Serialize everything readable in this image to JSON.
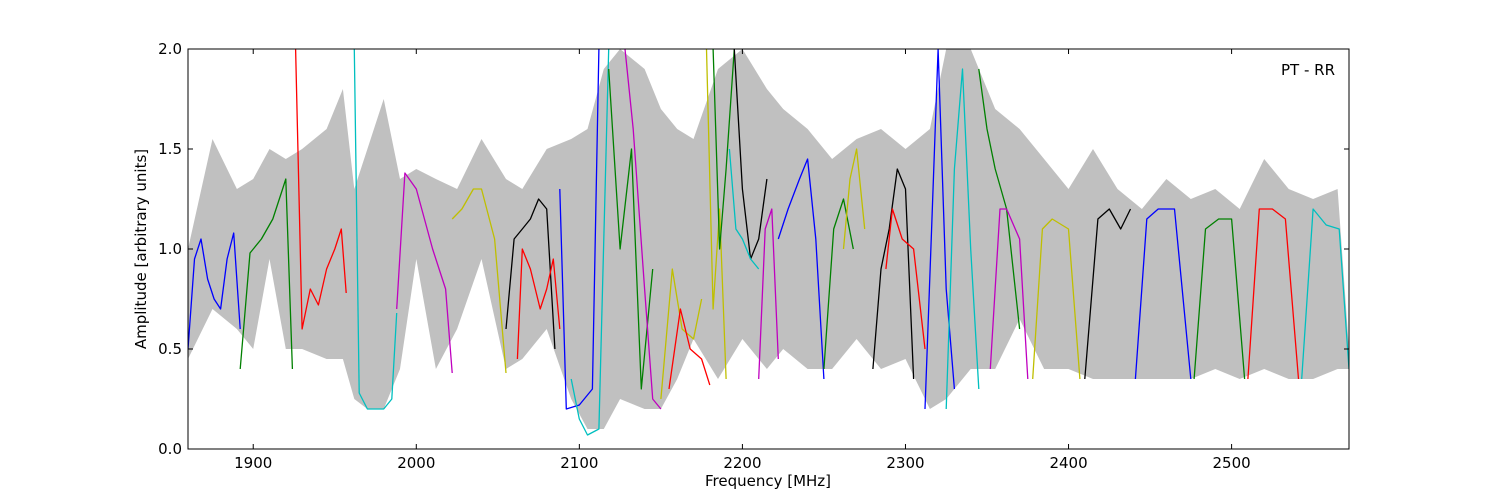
{
  "chart_data": {
    "type": "line",
    "title": "",
    "annotation": "PT - RR",
    "xlabel": "Frequency [MHz]",
    "ylabel": "Amplitude [arbitrary units]",
    "xlim": [
      1860,
      2572
    ],
    "ylim": [
      0.0,
      2.0
    ],
    "xticks": [
      1900,
      2000,
      2100,
      2200,
      2300,
      2400,
      2500
    ],
    "yticks": [
      0.0,
      0.5,
      1.0,
      1.5,
      2.0
    ],
    "xtick_labels": [
      "1900",
      "2000",
      "2100",
      "2200",
      "2300",
      "2400",
      "2500"
    ],
    "ytick_labels": [
      "0.0",
      "0.5",
      "1.0",
      "1.5",
      "2.0"
    ],
    "grid": false,
    "legend": "none",
    "background_envelope": {
      "color": "#c0c0c0",
      "x": [
        1860,
        1875,
        1890,
        1900,
        1910,
        1920,
        1930,
        1945,
        1955,
        1962,
        1970,
        1980,
        1990,
        2000,
        2012,
        2025,
        2040,
        2055,
        2065,
        2080,
        2095,
        2105,
        2115,
        2125,
        2140,
        2150,
        2160,
        2170,
        2185,
        2200,
        2215,
        2225,
        2240,
        2255,
        2270,
        2285,
        2300,
        2315,
        2325,
        2340,
        2355,
        2370,
        2385,
        2400,
        2415,
        2430,
        2445,
        2460,
        2475,
        2490,
        2505,
        2520,
        2535,
        2550,
        2565,
        2572
      ],
      "upper": [
        1.0,
        1.55,
        1.3,
        1.35,
        1.5,
        1.45,
        1.5,
        1.6,
        1.8,
        1.3,
        1.5,
        1.75,
        1.35,
        1.4,
        1.35,
        1.3,
        1.55,
        1.35,
        1.3,
        1.5,
        1.55,
        1.6,
        1.9,
        2.0,
        1.9,
        1.7,
        1.6,
        1.55,
        1.9,
        2.0,
        1.8,
        1.7,
        1.6,
        1.45,
        1.55,
        1.6,
        1.5,
        1.6,
        2.0,
        2.0,
        1.7,
        1.6,
        1.45,
        1.3,
        1.5,
        1.3,
        1.2,
        1.35,
        1.25,
        1.3,
        1.2,
        1.45,
        1.3,
        1.25,
        1.3,
        0.5
      ],
      "lower": [
        0.45,
        0.7,
        0.6,
        0.5,
        0.95,
        0.5,
        0.5,
        0.45,
        0.45,
        0.25,
        0.2,
        0.2,
        0.4,
        0.95,
        0.4,
        0.6,
        0.95,
        0.4,
        0.45,
        0.6,
        0.25,
        0.1,
        0.1,
        0.25,
        0.2,
        0.2,
        0.35,
        0.55,
        0.35,
        0.55,
        0.4,
        0.5,
        0.4,
        0.4,
        0.55,
        0.4,
        0.45,
        0.2,
        0.25,
        0.4,
        0.4,
        0.65,
        0.4,
        0.4,
        0.35,
        0.35,
        0.35,
        0.35,
        0.35,
        0.4,
        0.35,
        0.4,
        0.35,
        0.35,
        0.4,
        0.4
      ]
    },
    "series": [
      {
        "color": "#0000ff",
        "x": [
          1860,
          1864,
          1868,
          1872,
          1876,
          1880,
          1884,
          1888,
          1892
        ],
        "y": [
          0.5,
          0.95,
          1.05,
          0.85,
          0.75,
          0.7,
          0.95,
          1.08,
          0.6
        ]
      },
      {
        "color": "#008000",
        "x": [
          1892,
          1898,
          1905,
          1912,
          1918,
          1920,
          1924
        ],
        "y": [
          0.4,
          0.98,
          1.05,
          1.15,
          1.3,
          1.35,
          0.4
        ]
      },
      {
        "color": "#ff0000",
        "x": [
          1926,
          1930,
          1935,
          1940,
          1945,
          1950,
          1954,
          1957
        ],
        "y": [
          2.0,
          0.6,
          0.8,
          0.72,
          0.9,
          1.0,
          1.1,
          0.78
        ]
      },
      {
        "color": "#00bfbf",
        "x": [
          1962,
          1965,
          1970,
          1980,
          1985,
          1988
        ],
        "y": [
          2.0,
          0.28,
          0.2,
          0.2,
          0.25,
          0.68
        ]
      },
      {
        "color": "#bf00bf",
        "x": [
          1988,
          1993,
          2000,
          2010,
          2018,
          2022
        ],
        "y": [
          0.7,
          1.38,
          1.3,
          1.0,
          0.8,
          0.38
        ]
      },
      {
        "color": "#bfbf00",
        "x": [
          2022,
          2028,
          2035,
          2040,
          2048,
          2055
        ],
        "y": [
          1.15,
          1.2,
          1.3,
          1.3,
          1.05,
          0.38
        ]
      },
      {
        "color": "#000000",
        "x": [
          2055,
          2060,
          2065,
          2070,
          2075,
          2080,
          2085
        ],
        "y": [
          0.6,
          1.05,
          1.1,
          1.15,
          1.25,
          1.2,
          0.5
        ]
      },
      {
        "color": "#ff0000",
        "x": [
          2062,
          2065,
          2070,
          2076,
          2080,
          2084,
          2088
        ],
        "y": [
          0.45,
          1.0,
          0.9,
          0.7,
          0.8,
          0.95,
          0.6
        ]
      },
      {
        "color": "#0000ff",
        "x": [
          2088,
          2092,
          2100,
          2108,
          2112
        ],
        "y": [
          1.3,
          0.2,
          0.22,
          0.3,
          2.0
        ]
      },
      {
        "color": "#00bfbf",
        "x": [
          2095,
          2100,
          2105,
          2112,
          2118
        ],
        "y": [
          0.35,
          0.15,
          0.07,
          0.1,
          2.0
        ]
      },
      {
        "color": "#008000",
        "x": [
          2118,
          2125,
          2132,
          2138,
          2145
        ],
        "y": [
          1.9,
          1.0,
          1.5,
          0.3,
          0.9
        ]
      },
      {
        "color": "#bf00bf",
        "x": [
          2128,
          2133,
          2140,
          2145,
          2150
        ],
        "y": [
          2.0,
          1.6,
          0.8,
          0.25,
          0.2
        ]
      },
      {
        "color": "#bfbf00",
        "x": [
          2150,
          2157,
          2163,
          2170,
          2175
        ],
        "y": [
          0.25,
          0.9,
          0.6,
          0.55,
          0.75
        ]
      },
      {
        "color": "#ff0000",
        "x": [
          2155,
          2162,
          2168,
          2175,
          2180
        ],
        "y": [
          0.3,
          0.7,
          0.5,
          0.45,
          0.32
        ]
      },
      {
        "color": "#bfbf00",
        "x": [
          2178,
          2182,
          2186,
          2190
        ],
        "y": [
          2.0,
          0.7,
          1.2,
          0.35
        ]
      },
      {
        "color": "#008000",
        "x": [
          2182,
          2186,
          2190,
          2195
        ],
        "y": [
          2.0,
          1.0,
          1.4,
          2.0
        ]
      },
      {
        "color": "#000000",
        "x": [
          2195,
          2200,
          2205,
          2210,
          2215
        ],
        "y": [
          2.0,
          1.3,
          0.95,
          1.05,
          1.35
        ]
      },
      {
        "color": "#00bfbf",
        "x": [
          2192,
          2196,
          2200,
          2205,
          2210
        ],
        "y": [
          1.5,
          1.1,
          1.05,
          0.95,
          0.9
        ]
      },
      {
        "color": "#bf00bf",
        "x": [
          2210,
          2214,
          2218,
          2222
        ],
        "y": [
          0.35,
          1.1,
          1.2,
          0.45
        ]
      },
      {
        "color": "#0000ff",
        "x": [
          2222,
          2228,
          2235,
          2240,
          2245,
          2250
        ],
        "y": [
          1.05,
          1.2,
          1.35,
          1.45,
          1.05,
          0.35
        ]
      },
      {
        "color": "#008000",
        "x": [
          2250,
          2256,
          2262,
          2268
        ],
        "y": [
          0.4,
          1.1,
          1.25,
          1.0
        ]
      },
      {
        "color": "#bfbf00",
        "x": [
          2262,
          2266,
          2270,
          2275
        ],
        "y": [
          1.0,
          1.35,
          1.5,
          1.1
        ]
      },
      {
        "color": "#000000",
        "x": [
          2280,
          2285,
          2290,
          2295,
          2300,
          2305
        ],
        "y": [
          0.4,
          0.9,
          1.1,
          1.4,
          1.3,
          0.35
        ]
      },
      {
        "color": "#ff0000",
        "x": [
          2288,
          2292,
          2298,
          2305,
          2312
        ],
        "y": [
          0.9,
          1.2,
          1.05,
          1.0,
          0.5
        ]
      },
      {
        "color": "#0000ff",
        "x": [
          2312,
          2316,
          2320,
          2325,
          2330
        ],
        "y": [
          0.2,
          1.1,
          2.0,
          0.8,
          0.3
        ]
      },
      {
        "color": "#00bfbf",
        "x": [
          2325,
          2330,
          2335,
          2340,
          2345
        ],
        "y": [
          0.2,
          1.4,
          1.9,
          1.0,
          0.3
        ]
      },
      {
        "color": "#008000",
        "x": [
          2345,
          2350,
          2355,
          2362,
          2370
        ],
        "y": [
          1.9,
          1.6,
          1.4,
          1.2,
          0.6
        ]
      },
      {
        "color": "#bf00bf",
        "x": [
          2352,
          2358,
          2362,
          2370,
          2375
        ],
        "y": [
          0.4,
          1.2,
          1.2,
          1.05,
          0.35
        ]
      },
      {
        "color": "#bfbf00",
        "x": [
          2378,
          2384,
          2390,
          2400,
          2407
        ],
        "y": [
          0.35,
          1.1,
          1.15,
          1.1,
          0.35
        ]
      },
      {
        "color": "#000000",
        "x": [
          2410,
          2418,
          2425,
          2432,
          2438
        ],
        "y": [
          0.35,
          1.15,
          1.2,
          1.1,
          1.2
        ]
      },
      {
        "color": "#0000ff",
        "x": [
          2441,
          2448,
          2455,
          2465,
          2475
        ],
        "y": [
          0.35,
          1.15,
          1.2,
          1.2,
          0.35
        ]
      },
      {
        "color": "#008000",
        "x": [
          2477,
          2484,
          2492,
          2500,
          2508
        ],
        "y": [
          0.35,
          1.1,
          1.15,
          1.15,
          0.35
        ]
      },
      {
        "color": "#ff0000",
        "x": [
          2510,
          2517,
          2525,
          2533,
          2541
        ],
        "y": [
          0.35,
          1.2,
          1.2,
          1.15,
          0.35
        ]
      },
      {
        "color": "#00bfbf",
        "x": [
          2543,
          2550,
          2558,
          2566,
          2572
        ],
        "y": [
          0.35,
          1.2,
          1.12,
          1.1,
          0.4
        ]
      }
    ]
  }
}
